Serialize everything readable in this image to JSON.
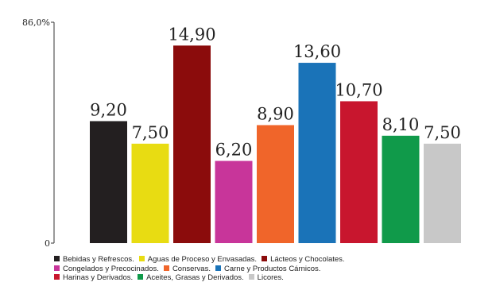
{
  "chart_data": {
    "type": "bar",
    "categories": [
      "Bebidas y Refrescos",
      "Aguas de Proceso y Envasadas",
      "Lácteos y Chocolates",
      "Congelados y Precocinados",
      "Conservas",
      "Carne y Productos Cárnicos",
      "Harinas y Derivados",
      "Aceites, Grasas y Derivados",
      "Licores"
    ],
    "values": [
      9.2,
      7.5,
      14.9,
      6.2,
      8.9,
      13.6,
      10.7,
      8.1,
      7.5
    ],
    "value_labels": [
      "9,20",
      "7,50",
      "14,90",
      "6,20",
      "8,90",
      "13,60",
      "10,70",
      "8,10",
      "7,50"
    ],
    "colors": [
      "#231f20",
      "#e8dc12",
      "#8b0c0c",
      "#c8359a",
      "#f0652a",
      "#1a73b8",
      "#c8162e",
      "#109a4a",
      "#c8c8c8"
    ],
    "ylim": [
      0,
      86.0
    ],
    "y_tick_labels": [
      "0",
      "86,0%"
    ],
    "grid": false,
    "legend": {
      "position": "bottom",
      "rows": [
        [
          "Bebidas y Refrescos.",
          "Aguas de Proceso y Envasadas.",
          "Lácteos y Chocolates."
        ],
        [
          "Congelados y Precocinados.",
          "Conservas.",
          "Carne y Productos Cárnicos."
        ],
        [
          "Harinas y Derivados.",
          "Aceites, Grasas y Derivados.",
          "Licores."
        ]
      ]
    }
  }
}
